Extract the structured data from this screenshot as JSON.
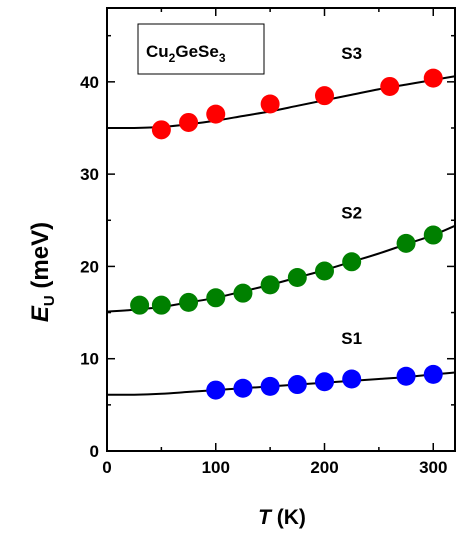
{
  "chart_data": {
    "type": "scatter",
    "sample_label": {
      "main": "Cu",
      "sub1": "2",
      "mid": "GeSe",
      "sub2": "3"
    },
    "xlabel": {
      "symbol": "T",
      "unit": " (K)"
    },
    "ylabel": {
      "symbol": "E",
      "sub": "U",
      "unit": " (meV)"
    },
    "xlim": [
      0,
      320
    ],
    "ylim": [
      0,
      48
    ],
    "x_ticks": [
      0,
      100,
      200,
      300
    ],
    "y_ticks": [
      0,
      10,
      20,
      30,
      40
    ],
    "series": [
      {
        "name": "S3",
        "color": "#ff0000",
        "points": [
          [
            50,
            34.8
          ],
          [
            75,
            35.6
          ],
          [
            100,
            36.5
          ],
          [
            150,
            37.6
          ],
          [
            200,
            38.5
          ],
          [
            260,
            39.5
          ],
          [
            300,
            40.4
          ]
        ],
        "fit": [
          [
            0,
            35.0
          ],
          [
            25,
            35.0
          ],
          [
            50,
            35.1
          ],
          [
            75,
            35.4
          ],
          [
            100,
            35.8
          ],
          [
            125,
            36.3
          ],
          [
            150,
            36.8
          ],
          [
            175,
            37.4
          ],
          [
            200,
            38.0
          ],
          [
            225,
            38.6
          ],
          [
            250,
            39.2
          ],
          [
            275,
            39.7
          ],
          [
            300,
            40.2
          ],
          [
            320,
            40.6
          ]
        ]
      },
      {
        "name": "S2",
        "color": "#008000",
        "points": [
          [
            30,
            15.8
          ],
          [
            50,
            15.8
          ],
          [
            75,
            16.1
          ],
          [
            100,
            16.6
          ],
          [
            125,
            17.1
          ],
          [
            150,
            18.0
          ],
          [
            175,
            18.8
          ],
          [
            200,
            19.5
          ],
          [
            225,
            20.5
          ],
          [
            275,
            22.5
          ],
          [
            300,
            23.4
          ]
        ],
        "fit": [
          [
            0,
            15.1
          ],
          [
            25,
            15.3
          ],
          [
            50,
            15.6
          ],
          [
            75,
            16.1
          ],
          [
            100,
            16.6
          ],
          [
            125,
            17.3
          ],
          [
            150,
            18.0
          ],
          [
            175,
            18.8
          ],
          [
            200,
            19.6
          ],
          [
            225,
            20.5
          ],
          [
            250,
            21.4
          ],
          [
            275,
            22.4
          ],
          [
            300,
            23.4
          ],
          [
            320,
            24.4
          ]
        ]
      },
      {
        "name": "S1",
        "color": "#0000ff",
        "points": [
          [
            100,
            6.6
          ],
          [
            125,
            6.8
          ],
          [
            150,
            7.0
          ],
          [
            175,
            7.2
          ],
          [
            200,
            7.5
          ],
          [
            225,
            7.8
          ],
          [
            275,
            8.1
          ],
          [
            300,
            8.3
          ]
        ],
        "fit": [
          [
            0,
            6.1
          ],
          [
            25,
            6.1
          ],
          [
            50,
            6.2
          ],
          [
            75,
            6.4
          ],
          [
            100,
            6.6
          ],
          [
            125,
            6.8
          ],
          [
            150,
            7.0
          ],
          [
            175,
            7.2
          ],
          [
            200,
            7.4
          ],
          [
            225,
            7.6
          ],
          [
            250,
            7.8
          ],
          [
            275,
            8.0
          ],
          [
            300,
            8.3
          ],
          [
            320,
            8.5
          ]
        ]
      }
    ],
    "series_label_positions": [
      {
        "name": "S3",
        "x": 225,
        "y": 42.5
      },
      {
        "name": "S2",
        "x": 225,
        "y": 25.2
      },
      {
        "name": "S1",
        "x": 225,
        "y": 11.6
      }
    ]
  }
}
